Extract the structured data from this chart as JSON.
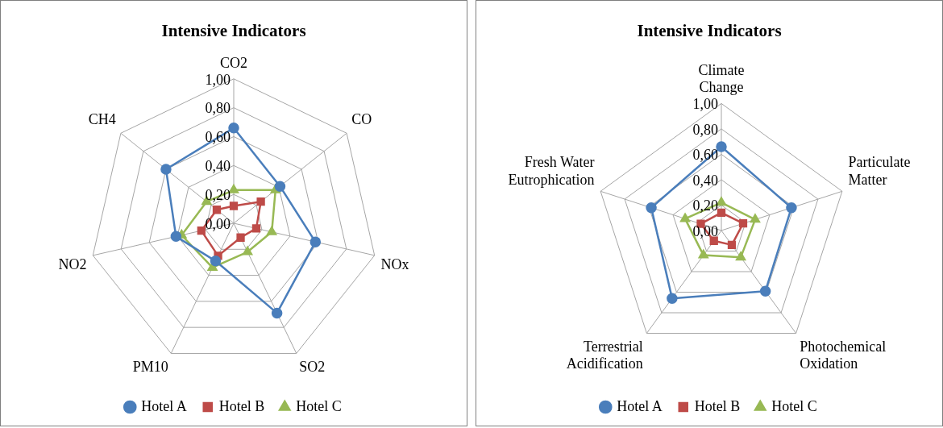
{
  "chart_data": [
    {
      "type": "radar",
      "title": "Intensive Indicators",
      "categories": [
        "CO2",
        "CO",
        "NOx",
        "SO2",
        "PM10",
        "NO2",
        "CH4"
      ],
      "series": [
        {
          "name": "Hotel A",
          "color": "#4a7ebb",
          "marker": "circle",
          "values": [
            0.66,
            0.41,
            0.58,
            0.69,
            0.29,
            0.41,
            0.6
          ]
        },
        {
          "name": "Hotel B",
          "color": "#be4b48",
          "marker": "square",
          "values": [
            0.12,
            0.24,
            0.16,
            0.11,
            0.25,
            0.23,
            0.15
          ]
        },
        {
          "name": "Hotel C",
          "color": "#98b954",
          "marker": "triangle",
          "values": [
            0.23,
            0.37,
            0.27,
            0.22,
            0.34,
            0.37,
            0.24
          ]
        }
      ],
      "ylim": [
        0,
        1
      ],
      "yticks": [
        {
          "value": 0,
          "label": "0,00"
        },
        {
          "value": 0.2,
          "label": "0,20"
        },
        {
          "value": 0.4,
          "label": "0,40"
        },
        {
          "value": 0.6,
          "label": "0,60"
        },
        {
          "value": 0.8,
          "label": "0,80"
        },
        {
          "value": 1,
          "label": "1,00"
        }
      ],
      "grid": true,
      "legend": "bottom"
    },
    {
      "type": "radar",
      "title": "Intensive Indicators",
      "categories": [
        "Climate Change",
        "Particulate Matter",
        "Photochemical Oxidation",
        "Terrestrial Acidification",
        "Fresh Water Eutrophication"
      ],
      "series": [
        {
          "name": "Hotel A",
          "color": "#4a7ebb",
          "marker": "circle",
          "values": [
            0.66,
            0.58,
            0.59,
            0.66,
            0.58
          ]
        },
        {
          "name": "Hotel B",
          "color": "#be4b48",
          "marker": "square",
          "values": [
            0.14,
            0.18,
            0.14,
            0.1,
            0.17
          ]
        },
        {
          "name": "Hotel C",
          "color": "#98b954",
          "marker": "triangle",
          "values": [
            0.22,
            0.28,
            0.26,
            0.24,
            0.3
          ]
        }
      ],
      "ylim": [
        0,
        1
      ],
      "yticks": [
        {
          "value": 0,
          "label": "0,00"
        },
        {
          "value": 0.2,
          "label": "0,20"
        },
        {
          "value": 0.4,
          "label": "0,40"
        },
        {
          "value": 0.6,
          "label": "0,60"
        },
        {
          "value": 0.8,
          "label": "0,80"
        },
        {
          "value": 1,
          "label": "1,00"
        }
      ],
      "grid": true,
      "legend": "bottom"
    }
  ]
}
